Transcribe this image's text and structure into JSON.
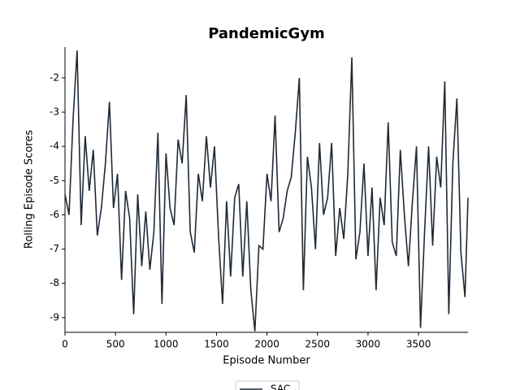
{
  "chart_data": {
    "type": "line",
    "title": "PandemicGym",
    "x_label": "Episode Number",
    "y_label": "Rolling Episode Scores",
    "x": [
      0,
      40,
      80,
      120,
      160,
      200,
      240,
      280,
      320,
      360,
      400,
      440,
      480,
      520,
      560,
      600,
      640,
      680,
      720,
      760,
      800,
      840,
      880,
      920,
      960,
      1000,
      1040,
      1080,
      1120,
      1160,
      1200,
      1240,
      1280,
      1320,
      1360,
      1400,
      1440,
      1480,
      1520,
      1560,
      1600,
      1640,
      1680,
      1720,
      1760,
      1800,
      1840,
      1880,
      1920,
      1960,
      2000,
      2040,
      2080,
      2120,
      2160,
      2200,
      2240,
      2280,
      2320,
      2360,
      2400,
      2440,
      2480,
      2520,
      2560,
      2600,
      2640,
      2680,
      2720,
      2760,
      2800,
      2840,
      2880,
      2920,
      2960,
      3000,
      3040,
      3080,
      3120,
      3160,
      3200,
      3240,
      3280,
      3320,
      3360,
      3400,
      3440,
      3480,
      3520,
      3560,
      3600,
      3640,
      3680,
      3720,
      3760,
      3800,
      3840,
      3880,
      3920,
      3960,
      3990
    ],
    "series": [
      {
        "name": "SAC",
        "color": "#1f2a36",
        "values": [
          -5.4,
          -6.0,
          -3.2,
          -1.2,
          -6.3,
          -3.7,
          -5.3,
          -4.1,
          -6.6,
          -5.8,
          -4.5,
          -2.7,
          -5.8,
          -4.8,
          -7.9,
          -5.3,
          -6.1,
          -8.9,
          -5.4,
          -7.5,
          -5.9,
          -7.6,
          -6.5,
          -3.6,
          -8.6,
          -4.2,
          -5.8,
          -6.3,
          -3.8,
          -4.5,
          -2.5,
          -6.5,
          -7.1,
          -4.8,
          -5.6,
          -3.7,
          -5.2,
          -4.0,
          -6.6,
          -8.6,
          -5.6,
          -7.8,
          -5.5,
          -5.1,
          -7.8,
          -5.6,
          -8.2,
          -9.4,
          -6.9,
          -7.0,
          -4.8,
          -5.6,
          -3.1,
          -6.5,
          -6.1,
          -5.3,
          -4.9,
          -3.6,
          -2.0,
          -8.2,
          -4.3,
          -5.2,
          -7.0,
          -3.9,
          -6.0,
          -5.5,
          -3.9,
          -7.2,
          -5.8,
          -6.7,
          -4.8,
          -1.4,
          -7.3,
          -6.5,
          -4.5,
          -7.2,
          -5.2,
          -8.2,
          -5.5,
          -6.3,
          -3.3,
          -6.8,
          -7.2,
          -4.1,
          -6.0,
          -7.5,
          -5.6,
          -4.0,
          -9.3,
          -6.5,
          -4.0,
          -6.9,
          -4.3,
          -5.2,
          -2.1,
          -8.9,
          -4.5,
          -2.6,
          -7.1,
          -8.4,
          -5.5
        ]
      }
    ],
    "xlim": [
      0,
      3990
    ],
    "ylim": [
      -9.43,
      -1.1
    ],
    "xticks": [
      0,
      500,
      1000,
      1500,
      2000,
      2500,
      3000,
      3500
    ],
    "yticks": [
      -9,
      -8,
      -7,
      -6,
      -5,
      -4,
      -3,
      -2
    ],
    "legend": "lower center"
  }
}
